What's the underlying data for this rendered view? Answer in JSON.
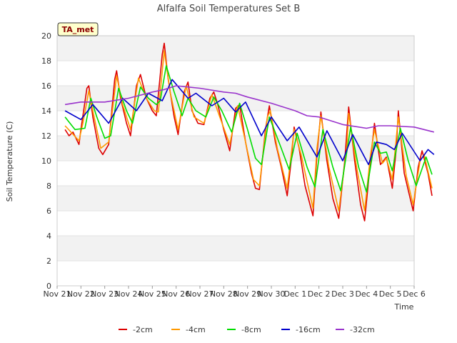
{
  "chart_data": {
    "type": "line",
    "title": "Alfalfa Soil Temperatures Set B",
    "xlabel": "Time",
    "ylabel": "Soil Temperature (C)",
    "annotation": "TA_met",
    "x_tick_labels": [
      "Nov 21",
      "Nov 22",
      "Nov 23",
      "Nov 24",
      "Nov 25",
      "Nov 26",
      "Nov 27",
      "Nov 28",
      "Nov 29",
      "Nov 30",
      "Dec 1",
      "Dec 2",
      "Dec 3",
      "Dec 4",
      "Dec 5",
      "Dec 6"
    ],
    "xlim": [
      "Nov 21",
      "Dec 6"
    ],
    "ylim": [
      0,
      20
    ],
    "y_ticks": [
      0,
      2,
      4,
      6,
      8,
      10,
      12,
      14,
      16,
      18,
      20
    ],
    "grid": "horizontal bands",
    "legend_position": "bottom",
    "series": [
      {
        "name": "-2cm",
        "color": "#dd0000",
        "points": [
          [
            "Nov 21 08:00",
            12.5
          ],
          [
            "Nov 21 12:00",
            12.0
          ],
          [
            "Nov 21 16:00",
            12.3
          ],
          [
            "Nov 21 22:00",
            11.3
          ],
          [
            "Nov 22 00:00",
            12.5
          ],
          [
            "Nov 22 06:00",
            15.8
          ],
          [
            "Nov 22 08:00",
            16.0
          ],
          [
            "Nov 22 12:00",
            13.5
          ],
          [
            "Nov 22 18:00",
            11.0
          ],
          [
            "Nov 22 22:00",
            10.5
          ],
          [
            "Nov 23 04:00",
            11.3
          ],
          [
            "Nov 23 10:00",
            16.5
          ],
          [
            "Nov 23 12:00",
            17.2
          ],
          [
            "Nov 23 16:00",
            15.0
          ],
          [
            "Nov 23 22:00",
            13.0
          ],
          [
            "Nov 24 02:00",
            12.0
          ],
          [
            "Nov 24 08:00",
            16.0
          ],
          [
            "Nov 24 12:00",
            16.9
          ],
          [
            "Nov 24 18:00",
            15.0
          ],
          [
            "Nov 25 00:00",
            14.0
          ],
          [
            "Nov 25 04:00",
            13.6
          ],
          [
            "Nov 25 10:00",
            18.5
          ],
          [
            "Nov 25 12:00",
            19.4
          ],
          [
            "Nov 25 16:00",
            16.5
          ],
          [
            "Nov 25 22:00",
            13.5
          ],
          [
            "Nov 26 02:00",
            12.1
          ],
          [
            "Nov 26 08:00",
            15.5
          ],
          [
            "Nov 26 12:00",
            16.3
          ],
          [
            "Nov 26 16:00",
            14.0
          ],
          [
            "Nov 26 22:00",
            13.0
          ],
          [
            "Nov 27 04:00",
            12.9
          ],
          [
            "Nov 27 10:00",
            15.0
          ],
          [
            "Nov 27 14:00",
            15.5
          ],
          [
            "Nov 27 18:00",
            14.5
          ],
          [
            "Nov 28 00:00",
            12.5
          ],
          [
            "Nov 28 06:00",
            10.8
          ],
          [
            "Nov 28 12:00",
            14.2
          ],
          [
            "Nov 28 16:00",
            14.5
          ],
          [
            "Nov 28 22:00",
            11.5
          ],
          [
            "Nov 29 04:00",
            9.0
          ],
          [
            "Nov 29 08:00",
            7.8
          ],
          [
            "Nov 29 12:00",
            7.7
          ],
          [
            "Nov 29 18:00",
            12.5
          ],
          [
            "Nov 29 22:00",
            14.4
          ],
          [
            "Nov 30 04:00",
            11.5
          ],
          [
            "Nov 30 10:00",
            9.5
          ],
          [
            "Nov 30 16:00",
            7.2
          ],
          [
            "Nov 30 20:00",
            10.0
          ],
          [
            "Nov 30 23:00",
            12.7
          ],
          [
            "Dec 1 04:00",
            11.0
          ],
          [
            "Dec 1 10:00",
            8.0
          ],
          [
            "Dec 1 18:00",
            5.6
          ],
          [
            "Dec 1 22:00",
            10.5
          ],
          [
            "Dec 2 02:00",
            13.9
          ],
          [
            "Dec 2 08:00",
            10.0
          ],
          [
            "Dec 2 14:00",
            7.0
          ],
          [
            "Dec 2 20:00",
            5.4
          ],
          [
            "Dec 3 02:00",
            10.0
          ],
          [
            "Dec 3 06:00",
            14.3
          ],
          [
            "Dec 3 12:00",
            10.0
          ],
          [
            "Dec 3 18:00",
            6.5
          ],
          [
            "Dec 3 22:00",
            5.2
          ],
          [
            "Dec 4 04:00",
            10.0
          ],
          [
            "Dec 4 08:00",
            13.0
          ],
          [
            "Dec 4 14:00",
            9.7
          ],
          [
            "Dec 4 20:00",
            10.3
          ],
          [
            "Dec 5 02:00",
            7.8
          ],
          [
            "Dec 5 06:00",
            11.0
          ],
          [
            "Dec 5 08:00",
            14.0
          ],
          [
            "Dec 5 14:00",
            9.0
          ],
          [
            "Dec 5 20:00",
            7.0
          ],
          [
            "Dec 5 23:00",
            6.0
          ],
          [
            "Dec 6 04:00",
            9.5
          ],
          [
            "Dec 6 08:00",
            10.8
          ],
          [
            "Dec 6 14:00",
            9.0
          ],
          [
            "Dec 6 18:00",
            7.2
          ]
        ]
      },
      {
        "name": "-4cm",
        "color": "#ff9900",
        "points": [
          [
            "Nov 21 08:00",
            12.8
          ],
          [
            "Nov 21 14:00",
            12.3
          ],
          [
            "Nov 21 22:00",
            11.6
          ],
          [
            "Nov 22 02:00",
            13.0
          ],
          [
            "Nov 22 08:00",
            15.6
          ],
          [
            "Nov 22 12:00",
            14.0
          ],
          [
            "Nov 22 20:00",
            11.0
          ],
          [
            "Nov 23 04:00",
            11.5
          ],
          [
            "Nov 23 12:00",
            16.8
          ],
          [
            "Nov 23 18:00",
            14.5
          ],
          [
            "Nov 24 02:00",
            12.5
          ],
          [
            "Nov 24 10:00",
            16.6
          ],
          [
            "Nov 24 18:00",
            15.0
          ],
          [
            "Nov 25 02:00",
            14.0
          ],
          [
            "Nov 25 06:00",
            13.9
          ],
          [
            "Nov 25 12:00",
            18.8
          ],
          [
            "Nov 25 18:00",
            15.5
          ],
          [
            "Nov 26 02:00",
            12.5
          ],
          [
            "Nov 26 10:00",
            16.0
          ],
          [
            "Nov 26 18:00",
            13.5
          ],
          [
            "Nov 27 04:00",
            13.0
          ],
          [
            "Nov 27 12:00",
            15.3
          ],
          [
            "Nov 27 20:00",
            13.5
          ],
          [
            "Nov 28 06:00",
            11.3
          ],
          [
            "Nov 28 14:00",
            14.4
          ],
          [
            "Nov 28 22:00",
            11.5
          ],
          [
            "Nov 29 06:00",
            8.5
          ],
          [
            "Nov 29 12:00",
            8.0
          ],
          [
            "Nov 29 20:00",
            13.5
          ],
          [
            "Nov 29 23:00",
            14.0
          ],
          [
            "Nov 30 06:00",
            11.0
          ],
          [
            "Nov 30 16:00",
            7.8
          ],
          [
            "Nov 30 23:00",
            12.5
          ],
          [
            "Dec 1 06:00",
            10.5
          ],
          [
            "Dec 1 18:00",
            6.2
          ],
          [
            "Dec 1 22:00",
            11.0
          ],
          [
            "Dec 2 02:00",
            13.6
          ],
          [
            "Dec 2 10:00",
            9.5
          ],
          [
            "Dec 2 20:00",
            6.0
          ],
          [
            "Dec 3 04:00",
            11.0
          ],
          [
            "Dec 3 06:00",
            13.8
          ],
          [
            "Dec 3 14:00",
            9.5
          ],
          [
            "Dec 3 22:00",
            6.0
          ],
          [
            "Dec 4 04:00",
            10.5
          ],
          [
            "Dec 4 08:00",
            12.5
          ],
          [
            "Dec 4 16:00",
            9.8
          ],
          [
            "Dec 4 20:00",
            10.2
          ],
          [
            "Dec 5 02:00",
            8.5
          ],
          [
            "Dec 5 08:00",
            13.5
          ],
          [
            "Dec 5 16:00",
            8.8
          ],
          [
            "Dec 5 23:00",
            6.5
          ],
          [
            "Dec 6 06:00",
            10.0
          ],
          [
            "Dec 6 10:00",
            10.5
          ],
          [
            "Dec 6 18:00",
            7.8
          ]
        ]
      },
      {
        "name": "-8cm",
        "color": "#00dd00",
        "points": [
          [
            "Nov 21 08:00",
            13.5
          ],
          [
            "Nov 21 18:00",
            12.5
          ],
          [
            "Nov 22 04:00",
            12.6
          ],
          [
            "Nov 22 10:00",
            15.0
          ],
          [
            "Nov 22 16:00",
            13.5
          ],
          [
            "Nov 23 00:00",
            11.8
          ],
          [
            "Nov 23 06:00",
            12.0
          ],
          [
            "Nov 23 14:00",
            15.8
          ],
          [
            "Nov 23 22:00",
            14.0
          ],
          [
            "Nov 24 04:00",
            13.0
          ],
          [
            "Nov 24 12:00",
            15.9
          ],
          [
            "Nov 24 20:00",
            15.0
          ],
          [
            "Nov 25 04:00",
            14.5
          ],
          [
            "Nov 25 08:00",
            14.8
          ],
          [
            "Nov 25 14:00",
            17.6
          ],
          [
            "Nov 25 22:00",
            15.5
          ],
          [
            "Nov 26 06:00",
            13.6
          ],
          [
            "Nov 26 12:00",
            15.0
          ],
          [
            "Nov 26 20:00",
            14.0
          ],
          [
            "Nov 27 06:00",
            13.5
          ],
          [
            "Nov 27 14:00",
            15.1
          ],
          [
            "Nov 27 22:00",
            14.0
          ],
          [
            "Nov 28 08:00",
            12.3
          ],
          [
            "Nov 28 16:00",
            14.6
          ],
          [
            "Nov 29 00:00",
            12.5
          ],
          [
            "Nov 29 08:00",
            10.2
          ],
          [
            "Nov 29 14:00",
            9.7
          ],
          [
            "Nov 29 22:00",
            13.5
          ],
          [
            "Nov 30 10:00",
            11.0
          ],
          [
            "Nov 30 18:00",
            9.3
          ],
          [
            "Dec 1 02:00",
            12.2
          ],
          [
            "Dec 1 12:00",
            9.5
          ],
          [
            "Dec 1 20:00",
            7.9
          ],
          [
            "Dec 2 04:00",
            12.5
          ],
          [
            "Dec 2 14:00",
            9.5
          ],
          [
            "Dec 2 22:00",
            7.6
          ],
          [
            "Dec 3 08:00",
            12.7
          ],
          [
            "Dec 3 16:00",
            9.5
          ],
          [
            "Dec 4 00:00",
            7.5
          ],
          [
            "Dec 4 08:00",
            11.5
          ],
          [
            "Dec 4 14:00",
            10.6
          ],
          [
            "Dec 4 20:00",
            10.7
          ],
          [
            "Dec 5 02:00",
            9.2
          ],
          [
            "Dec 5 10:00",
            12.6
          ],
          [
            "Dec 5 18:00",
            10.0
          ],
          [
            "Dec 6 02:00",
            8.0
          ],
          [
            "Dec 6 12:00",
            10.3
          ],
          [
            "Dec 6 18:00",
            8.9
          ]
        ]
      },
      {
        "name": "-16cm",
        "color": "#0000cc",
        "points": [
          [
            "Nov 21 08:00",
            14.0
          ],
          [
            "Nov 22 00:00",
            13.3
          ],
          [
            "Nov 22 12:00",
            14.5
          ],
          [
            "Nov 23 04:00",
            13.0
          ],
          [
            "Nov 23 18:00",
            15.0
          ],
          [
            "Nov 24 08:00",
            14.0
          ],
          [
            "Nov 24 20:00",
            15.4
          ],
          [
            "Nov 25 10:00",
            14.8
          ],
          [
            "Nov 25 20:00",
            16.5
          ],
          [
            "Nov 26 12:00",
            15.0
          ],
          [
            "Nov 26 20:00",
            15.4
          ],
          [
            "Nov 27 12:00",
            14.4
          ],
          [
            "Nov 28 00:00",
            15.0
          ],
          [
            "Nov 28 12:00",
            13.9
          ],
          [
            "Nov 28 22:00",
            14.7
          ],
          [
            "Nov 29 14:00",
            12.0
          ],
          [
            "Nov 30 00:00",
            13.5
          ],
          [
            "Nov 30 16:00",
            11.6
          ],
          [
            "Dec 1 04:00",
            12.7
          ],
          [
            "Dec 1 22:00",
            10.3
          ],
          [
            "Dec 2 08:00",
            12.4
          ],
          [
            "Dec 3 00:00",
            10.0
          ],
          [
            "Dec 3 10:00",
            12.1
          ],
          [
            "Dec 4 02:00",
            9.7
          ],
          [
            "Dec 4 10:00",
            11.5
          ],
          [
            "Dec 4 20:00",
            11.3
          ],
          [
            "Dec 5 04:00",
            10.9
          ],
          [
            "Dec 5 12:00",
            12.2
          ],
          [
            "Dec 6 06:00",
            10.0
          ],
          [
            "Dec 6 14:00",
            10.9
          ],
          [
            "Dec 6 20:00",
            10.5
          ]
        ]
      },
      {
        "name": "-32cm",
        "color": "#9933cc",
        "points": [
          [
            "Nov 21 08:00",
            14.5
          ],
          [
            "Nov 22 00:00",
            14.7
          ],
          [
            "Nov 23 00:00",
            14.7
          ],
          [
            "Nov 24 00:00",
            15.0
          ],
          [
            "Nov 25 00:00",
            15.5
          ],
          [
            "Nov 25 12:00",
            15.7
          ],
          [
            "Nov 26 00:00",
            16.0
          ],
          [
            "Nov 27 00:00",
            15.8
          ],
          [
            "Nov 28 00:00",
            15.5
          ],
          [
            "Nov 28 12:00",
            15.4
          ],
          [
            "Nov 29 00:00",
            15.1
          ],
          [
            "Nov 30 00:00",
            14.6
          ],
          [
            "Dec 1 00:00",
            14.0
          ],
          [
            "Dec 1 12:00",
            13.6
          ],
          [
            "Dec 2 00:00",
            13.5
          ],
          [
            "Dec 3 00:00",
            12.9
          ],
          [
            "Dec 4 00:00",
            12.6
          ],
          [
            "Dec 4 12:00",
            12.8
          ],
          [
            "Dec 5 00:00",
            12.8
          ],
          [
            "Dec 6 00:00",
            12.7
          ],
          [
            "Dec 6 20:00",
            12.3
          ]
        ]
      }
    ]
  }
}
